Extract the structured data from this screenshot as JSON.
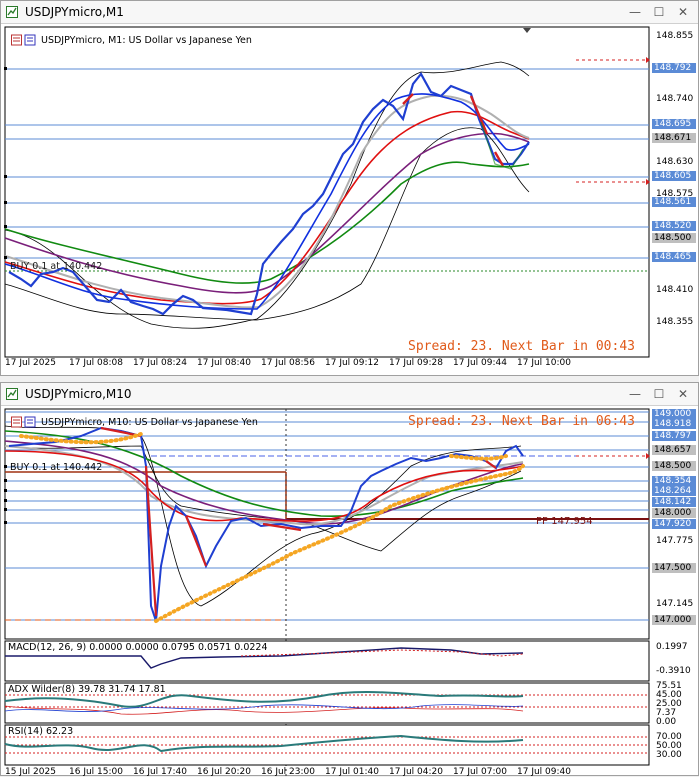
{
  "windows": [
    {
      "title": "USDJPYmicro,M1",
      "header": "USDJPYmicro, M1:  US Dollar vs Japanese Yen",
      "trade_label": "BUY 0.1 at 140.442",
      "spread_text": "Spread: 23. Next Bar in 00:43",
      "price_scale": [
        "148.855",
        "148.740",
        "148.630",
        "148.575",
        "148.410",
        "148.355"
      ],
      "price_tags": [
        "148.792",
        "148.695",
        "148.671",
        "148.605",
        "148.561",
        "148.520",
        "148.500",
        "148.465"
      ],
      "time_axis": [
        "17 Jul 2025",
        "17 Jul 08:08",
        "17 Jul 08:24",
        "17 Jul 08:40",
        "17 Jul 08:56",
        "17 Jul 09:12",
        "17 Jul 09:28",
        "17 Jul 09:44",
        "17 Jul 10:00"
      ]
    },
    {
      "title": "USDJPYmicro,M10",
      "header": "USDJPYmicro, M10:  US Dollar vs Japanese Yen",
      "trade_label": "BUY 0.1 at 140.442",
      "spread_text": "Spread: 23. Next Bar in 06:43",
      "pivot_label": "PP 147.954",
      "price_scale": [
        "147.775",
        "147.145"
      ],
      "price_tags": [
        "149.000",
        "148.918",
        "148.797",
        "148.657",
        "148.500",
        "148.354",
        "148.264",
        "148.142",
        "148.000",
        "147.920",
        "147.500",
        "147.000"
      ],
      "macd_label": "MACD(12, 26, 9) 0.0000 0.0000 0.0795 0.0571 0.0224",
      "macd_scale": [
        "0.1997",
        "-0.3910"
      ],
      "adx_label": "ADX Wilder(8) 39.78 31.74 17.81",
      "adx_scale": [
        "75.51",
        "45.00",
        "25.00",
        "7.37",
        "0.00"
      ],
      "rsi_label": "RSI(14) 62.23",
      "rsi_scale": [
        "70.00",
        "50.00",
        "30.00"
      ],
      "time_axis": [
        "15 Jul 2025",
        "16 Jul 15:00",
        "16 Jul 17:40",
        "16 Jul 20:20",
        "16 Jul 23:00",
        "17 Jul 01:40",
        "17 Jul 04:20",
        "17 Jul 07:00",
        "17 Jul 09:40"
      ]
    }
  ],
  "colors": {
    "bull": "#1f3fd1",
    "bear": "#d42020",
    "ma_red": "#e01010",
    "ma_blue": "#1030e0",
    "ma_purple": "#7a1f7a",
    "ma_green": "#118a11",
    "ma_gray": "#b0b0b0",
    "price_tag": "#5b8bd6",
    "trail": "#f5a623"
  },
  "icons": [
    "chart-window-icon",
    "minimize-icon",
    "maximize-icon",
    "close-icon"
  ]
}
